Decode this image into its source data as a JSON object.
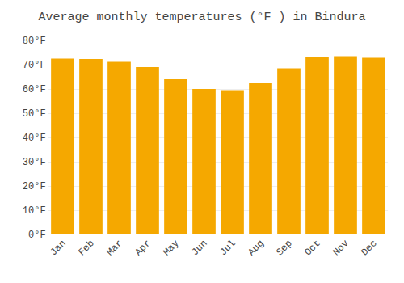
{
  "chart_data": {
    "type": "bar",
    "title": "Average monthly temperatures (°F ) in Bindura",
    "categories": [
      "Jan",
      "Feb",
      "Mar",
      "Apr",
      "May",
      "Jun",
      "Jul",
      "Aug",
      "Sep",
      "Oct",
      "Nov",
      "Dec"
    ],
    "values": [
      72.5,
      72.3,
      71.2,
      69.0,
      64.0,
      60.0,
      59.5,
      62.3,
      68.5,
      73.0,
      73.5,
      72.8
    ],
    "color": "#F5A800",
    "ylim": [
      0,
      80
    ],
    "yticks": [
      {
        "value": 0,
        "label": "0°F"
      },
      {
        "value": 10,
        "label": "10°F"
      },
      {
        "value": 20,
        "label": "20°F"
      },
      {
        "value": 30,
        "label": "30°F"
      },
      {
        "value": 40,
        "label": "40°F"
      },
      {
        "value": 50,
        "label": "50°F"
      },
      {
        "value": 60,
        "label": "60°F"
      },
      {
        "value": 70,
        "label": "70°F"
      },
      {
        "value": 80,
        "label": "80°F"
      }
    ],
    "grid": true
  }
}
